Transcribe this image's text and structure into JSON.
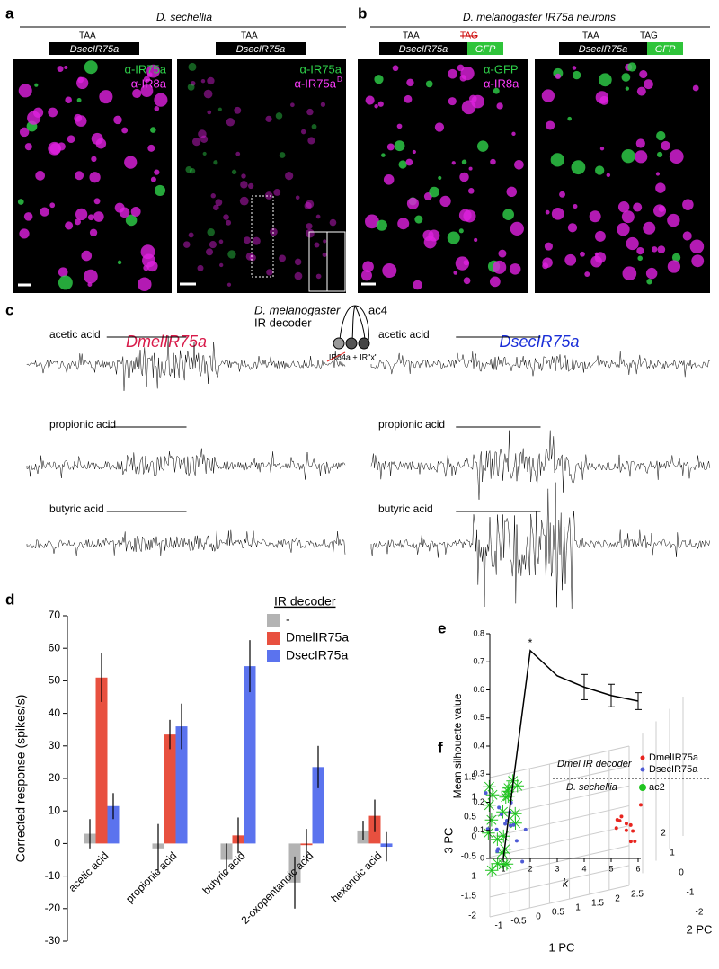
{
  "panel_a": {
    "letter": "a",
    "species": "D. sechellia",
    "left": {
      "stop": "TAA",
      "gene": "DsecIR75a",
      "stain1": "α-IR75a",
      "stain2": "α-IR8a"
    },
    "right": {
      "stop": "TAA",
      "gene": "DsecIR75a",
      "stain1": "α-IR75a",
      "stain2": "α-IR75a",
      "stain2_sup": "D"
    }
  },
  "panel_b": {
    "letter": "b",
    "title": "D. melanogaster IR75a neurons",
    "left": {
      "stop1": "TAA",
      "stop2": "TAG",
      "gene": "DsecIR75a",
      "tag": "GFP",
      "stain1": "α-GFP",
      "stain2": "α-IR8a"
    },
    "right": {
      "stop1": "TAA",
      "stop2": "TAG",
      "gene": "DsecIR75a",
      "tag": "GFP"
    }
  },
  "panel_c": {
    "letter": "c",
    "decoder_species": "D. melanogaster",
    "decoder": "IR decoder",
    "sensillum": "ac4",
    "construct": "IR84a + IR\"x\"",
    "left_title": "DmelIR75a",
    "right_title": "DsecIR75a",
    "odors": [
      "acetic acid",
      "propionic acid",
      "butyric acid"
    ]
  },
  "panel_f": {
    "letter": "f",
    "legend_title": "Dmel IR decoder",
    "legend_items": [
      {
        "name": "DmelIR75a",
        "color": "#e8251f"
      },
      {
        "name": "DsecIR75a",
        "color": "#4f5bd5"
      }
    ],
    "legend2_title": "D. sechellia",
    "legend2_item": {
      "name": "ac2",
      "color": "#1fc41f"
    },
    "xlabel": "1 PC",
    "ylabel": "2 PC",
    "zlabel": "3 PC",
    "xticks": [
      "-1",
      "-0.5",
      "0",
      "0.5",
      "1",
      "1.5",
      "2",
      "2.5"
    ],
    "yticks": [
      "-2",
      "-1",
      "0",
      "1",
      "2"
    ],
    "zticks": [
      "1.5",
      "1",
      "0.5",
      "0",
      "-0.5",
      "-1",
      "-1.5",
      "-2"
    ]
  },
  "chart_data": [
    {
      "type": "bar",
      "panel_label": "d",
      "ylabel": "Corrected response (spikes/s)",
      "categories": [
        "acetic acid",
        "propionic acid",
        "butyric acid",
        "2-oxopentanoic acid",
        "hexanoic acid"
      ],
      "legend_title": "IR decoder",
      "series": [
        {
          "name": "-",
          "color": "#b3b3b3",
          "values": [
            3,
            -1.5,
            -5,
            -12,
            4
          ],
          "errors": [
            4.5,
            7.5,
            5,
            8,
            3
          ]
        },
        {
          "name": "DmelIR75a",
          "color": "#e8503f",
          "values": [
            51,
            33.5,
            2.5,
            -0.5,
            8.5
          ],
          "errors": [
            7.5,
            4.5,
            5.5,
            5,
            5
          ]
        },
        {
          "name": "DsecIR75a",
          "color": "#5b73ee",
          "values": [
            11.5,
            36,
            54.5,
            23.5,
            -1
          ],
          "errors": [
            4,
            7,
            8,
            6.5,
            4.5
          ]
        }
      ],
      "ylim": [
        -30,
        70
      ],
      "yticks": [
        -30,
        -20,
        -10,
        0,
        10,
        20,
        30,
        40,
        50,
        60,
        70
      ]
    },
    {
      "type": "line",
      "panel_label": "e",
      "ylabel": "Mean silhouette value",
      "xlabel": "k",
      "annotation": "*",
      "x": [
        1,
        2,
        3,
        4,
        5,
        6
      ],
      "values": [
        0,
        0.74,
        0.65,
        0.61,
        0.58,
        0.56
      ],
      "errors": [
        null,
        null,
        null,
        0.045,
        0.04,
        0.03
      ],
      "xlim": [
        0.5,
        6.1
      ],
      "xticks": [
        1,
        2,
        3,
        4,
        5,
        6
      ],
      "ylim": [
        0,
        0.8
      ],
      "yticks": [
        0,
        0.1,
        0.2,
        0.3,
        0.4,
        0.5,
        0.6,
        0.7,
        0.8
      ]
    }
  ]
}
